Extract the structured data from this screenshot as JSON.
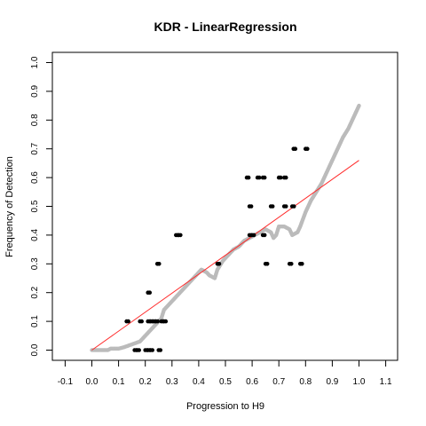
{
  "chart_data": {
    "type": "scatter",
    "title": "KDR - LinearRegression",
    "xlabel": "Progression to H9",
    "ylabel": "Frequency of Detection",
    "xlim": [
      -0.13,
      1.13
    ],
    "ylim": [
      -0.04,
      1.04
    ],
    "x_ticks": [
      "-0.1",
      "0.0",
      "0.1",
      "0.2",
      "0.3",
      "0.4",
      "0.5",
      "0.6",
      "0.7",
      "0.8",
      "0.9",
      "1.0",
      "1.1"
    ],
    "y_ticks": [
      "0.0",
      "0.1",
      "0.2",
      "0.3",
      "0.4",
      "0.5",
      "0.6",
      "0.7",
      "0.8",
      "0.9",
      "1.0"
    ],
    "grid": false,
    "colors": {
      "observed": "#000000",
      "cumulative": "#bbbbbb",
      "fit_line": "#ff2a2a"
    },
    "observed_points": [
      {
        "x": 0.13,
        "y": 0.1
      },
      {
        "x": 0.16,
        "y": 0.0
      },
      {
        "x": 0.17,
        "y": 0.0
      },
      {
        "x": 0.18,
        "y": 0.1
      },
      {
        "x": 0.2,
        "y": 0.0
      },
      {
        "x": 0.21,
        "y": 0.1
      },
      {
        "x": 0.21,
        "y": 0.0
      },
      {
        "x": 0.21,
        "y": 0.2
      },
      {
        "x": 0.22,
        "y": 0.1
      },
      {
        "x": 0.22,
        "y": 0.0
      },
      {
        "x": 0.23,
        "y": 0.1
      },
      {
        "x": 0.24,
        "y": 0.1
      },
      {
        "x": 0.245,
        "y": 0.3
      },
      {
        "x": 0.25,
        "y": 0.0
      },
      {
        "x": 0.26,
        "y": 0.1
      },
      {
        "x": 0.27,
        "y": 0.1
      },
      {
        "x": 0.315,
        "y": 0.4
      },
      {
        "x": 0.325,
        "y": 0.4
      },
      {
        "x": 0.47,
        "y": 0.3
      },
      {
        "x": 0.58,
        "y": 0.6
      },
      {
        "x": 0.59,
        "y": 0.4
      },
      {
        "x": 0.59,
        "y": 0.5
      },
      {
        "x": 0.6,
        "y": 0.4
      },
      {
        "x": 0.62,
        "y": 0.6
      },
      {
        "x": 0.64,
        "y": 0.6
      },
      {
        "x": 0.64,
        "y": 0.4
      },
      {
        "x": 0.65,
        "y": 0.3
      },
      {
        "x": 0.67,
        "y": 0.5
      },
      {
        "x": 0.7,
        "y": 0.6
      },
      {
        "x": 0.72,
        "y": 0.6
      },
      {
        "x": 0.72,
        "y": 0.5
      },
      {
        "x": 0.74,
        "y": 0.3
      },
      {
        "x": 0.75,
        "y": 0.5
      },
      {
        "x": 0.755,
        "y": 0.7
      },
      {
        "x": 0.78,
        "y": 0.3
      },
      {
        "x": 0.8,
        "y": 0.7
      }
    ],
    "cumulative_curve": [
      [
        0.0,
        0.0
      ],
      [
        0.06,
        0.0
      ],
      [
        0.07,
        0.005
      ],
      [
        0.1,
        0.005
      ],
      [
        0.12,
        0.01
      ],
      [
        0.15,
        0.02
      ],
      [
        0.18,
        0.03
      ],
      [
        0.2,
        0.05
      ],
      [
        0.22,
        0.07
      ],
      [
        0.24,
        0.09
      ],
      [
        0.26,
        0.11
      ],
      [
        0.27,
        0.14
      ],
      [
        0.28,
        0.15
      ],
      [
        0.3,
        0.17
      ],
      [
        0.32,
        0.19
      ],
      [
        0.34,
        0.21
      ],
      [
        0.36,
        0.23
      ],
      [
        0.38,
        0.25
      ],
      [
        0.4,
        0.27
      ],
      [
        0.41,
        0.28
      ],
      [
        0.43,
        0.27
      ],
      [
        0.44,
        0.26
      ],
      [
        0.46,
        0.25
      ],
      [
        0.47,
        0.28
      ],
      [
        0.49,
        0.31
      ],
      [
        0.51,
        0.33
      ],
      [
        0.53,
        0.35
      ],
      [
        0.55,
        0.36
      ],
      [
        0.57,
        0.38
      ],
      [
        0.59,
        0.39
      ],
      [
        0.61,
        0.4
      ],
      [
        0.63,
        0.41
      ],
      [
        0.65,
        0.42
      ],
      [
        0.67,
        0.41
      ],
      [
        0.68,
        0.39
      ],
      [
        0.69,
        0.4
      ],
      [
        0.7,
        0.43
      ],
      [
        0.72,
        0.43
      ],
      [
        0.74,
        0.42
      ],
      [
        0.75,
        0.4
      ],
      [
        0.77,
        0.41
      ],
      [
        0.78,
        0.43
      ],
      [
        0.8,
        0.48
      ],
      [
        0.82,
        0.52
      ],
      [
        0.84,
        0.55
      ],
      [
        0.86,
        0.58
      ],
      [
        0.88,
        0.62
      ],
      [
        0.9,
        0.66
      ],
      [
        0.92,
        0.7
      ],
      [
        0.94,
        0.74
      ],
      [
        0.96,
        0.77
      ],
      [
        0.97,
        0.79
      ],
      [
        0.98,
        0.81
      ],
      [
        0.99,
        0.83
      ],
      [
        1.0,
        0.85
      ]
    ],
    "fit_line": {
      "x": [
        0.0,
        1.0
      ],
      "y": [
        0.0,
        0.66
      ]
    }
  }
}
